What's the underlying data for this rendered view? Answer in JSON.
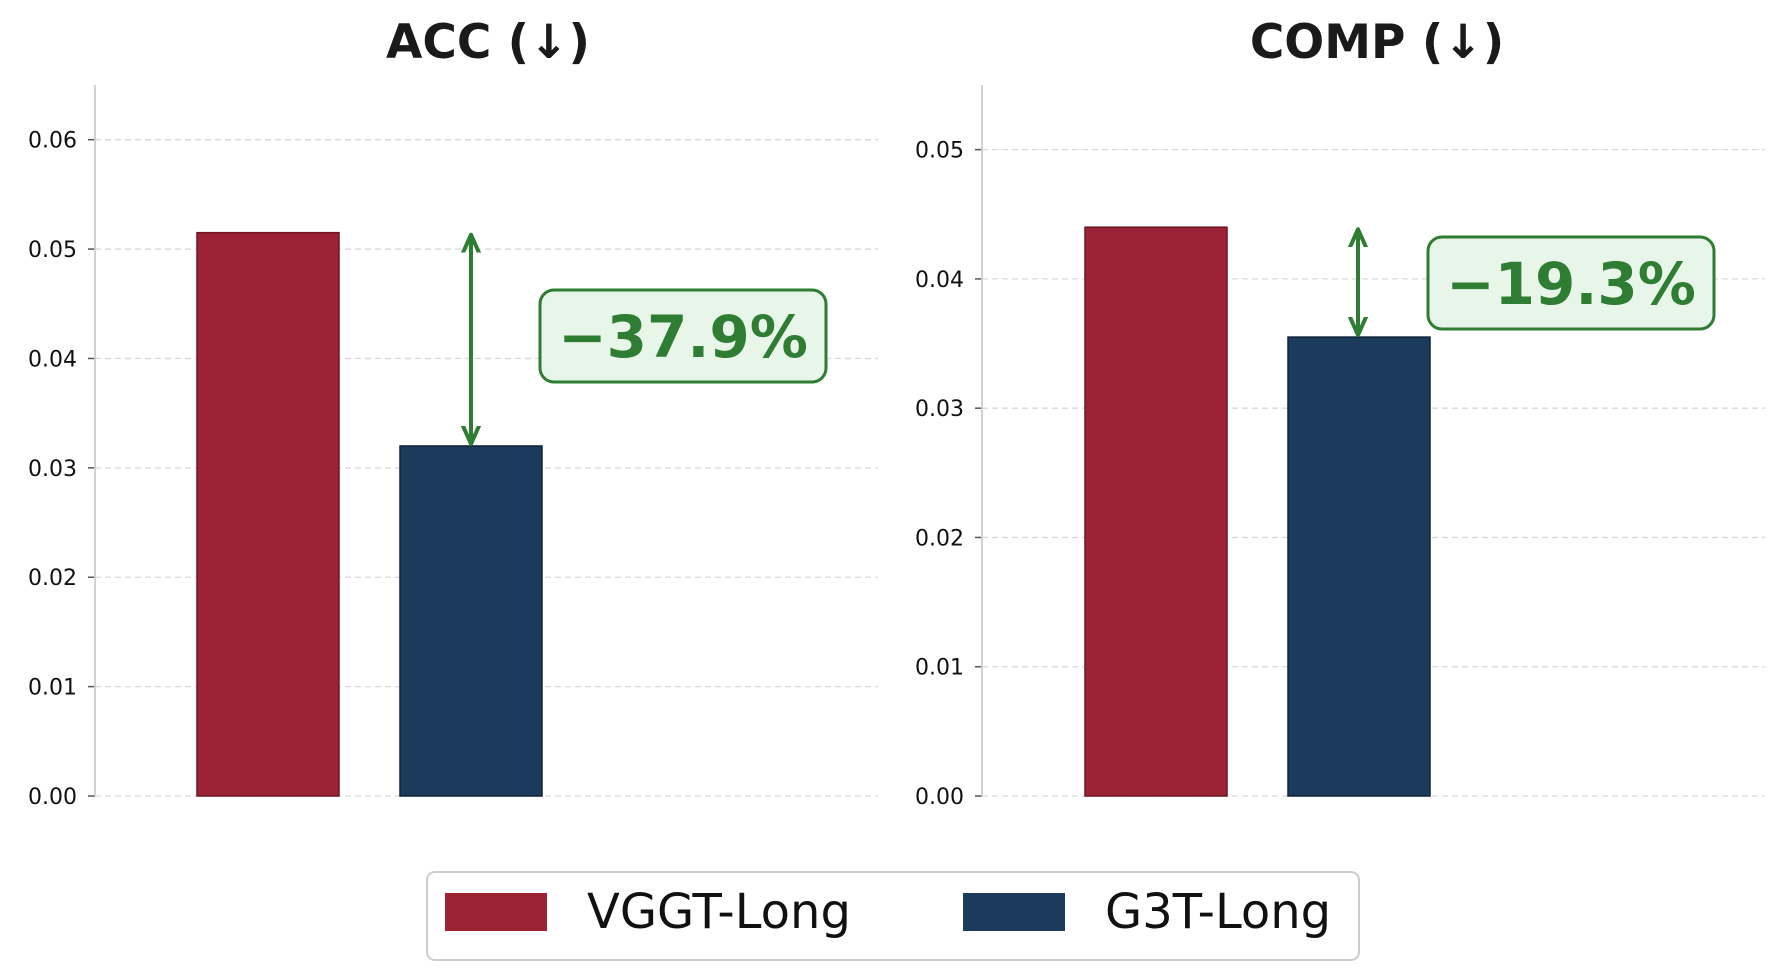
{
  "chart_data": [
    {
      "type": "bar",
      "title": "ACC (↓)",
      "categories": [
        "VGGT-Long",
        "G3T-Long"
      ],
      "values": [
        0.0515,
        0.032
      ],
      "ylim": [
        0,
        0.065
      ],
      "yticks": [
        "0.00",
        "0.01",
        "0.02",
        "0.03",
        "0.04",
        "0.05",
        "0.06"
      ],
      "grid": true,
      "annotation": {
        "text": "−37.9%",
        "from": 0.0515,
        "to": 0.032
      }
    },
    {
      "type": "bar",
      "title": "COMP (↓)",
      "categories": [
        "VGGT-Long",
        "G3T-Long"
      ],
      "values": [
        0.044,
        0.0355
      ],
      "ylim": [
        0,
        0.055
      ],
      "yticks": [
        "0.00",
        "0.01",
        "0.02",
        "0.03",
        "0.04",
        "0.05"
      ],
      "grid": true,
      "annotation": {
        "text": "−19.3%",
        "from": 0.044,
        "to": 0.0355
      }
    }
  ],
  "legend": {
    "placement": "bottom-center",
    "items": [
      {
        "label": "VGGT-Long",
        "color": "#9b2335"
      },
      {
        "label": "G3T-Long",
        "color": "#1b3a5c"
      }
    ]
  },
  "colors": {
    "series": [
      "#9b2335",
      "#1b3a5c"
    ],
    "annotation": "#2e7d32",
    "annotation_fill": "#e8f5e9",
    "grid": "#d9d9d9",
    "axis": "#cccccc"
  }
}
